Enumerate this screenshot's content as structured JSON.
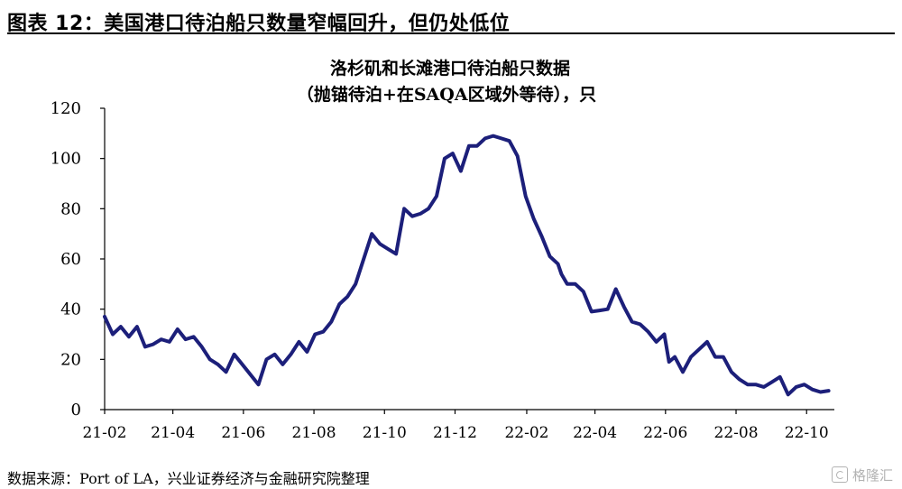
{
  "header": {
    "title": "图表 12：美国港口待泊船只数量窄幅回升，但仍处低位"
  },
  "footer": {
    "source": "数据来源：Port of LA，兴业证券经济与金融研究院整理",
    "watermark": "格隆汇"
  },
  "colors": {
    "line": "#1c1f7a",
    "axis": "#000000",
    "text": "#000000"
  },
  "chart_data": {
    "type": "line",
    "title": "洛杉矶和长滩港口待泊船只数据",
    "subtitle": "（抛锚待泊+在SAQA区域外等待），只",
    "xlabel": "",
    "ylabel": "",
    "grid": false,
    "legend": "none",
    "ylim": [
      0,
      120
    ],
    "yticks": [
      0,
      20,
      40,
      60,
      80,
      100,
      120
    ],
    "xlim": [
      "2021-02-01",
      "2022-10-25"
    ],
    "xticks": [
      {
        "date": "2021-02-01",
        "label": "21-02"
      },
      {
        "date": "2021-04-01",
        "label": "21-04"
      },
      {
        "date": "2021-06-01",
        "label": "21-06"
      },
      {
        "date": "2021-08-01",
        "label": "21-08"
      },
      {
        "date": "2021-10-01",
        "label": "21-10"
      },
      {
        "date": "2021-12-01",
        "label": "21-12"
      },
      {
        "date": "2022-02-01",
        "label": "22-02"
      },
      {
        "date": "2022-04-01",
        "label": "22-04"
      },
      {
        "date": "2022-06-01",
        "label": "22-06"
      },
      {
        "date": "2022-08-01",
        "label": "22-08"
      },
      {
        "date": "2022-10-01",
        "label": "22-10"
      }
    ],
    "series": [
      {
        "points": [
          [
            "2021-02-01",
            37
          ],
          [
            "2021-02-08",
            30
          ],
          [
            "2021-02-15",
            33
          ],
          [
            "2021-02-22",
            29
          ],
          [
            "2021-03-01",
            33
          ],
          [
            "2021-03-08",
            25
          ],
          [
            "2021-03-15",
            26
          ],
          [
            "2021-03-22",
            28
          ],
          [
            "2021-03-29",
            27
          ],
          [
            "2021-04-05",
            32
          ],
          [
            "2021-04-12",
            28
          ],
          [
            "2021-04-19",
            29
          ],
          [
            "2021-04-26",
            25
          ],
          [
            "2021-05-03",
            20
          ],
          [
            "2021-05-10",
            18
          ],
          [
            "2021-05-17",
            15
          ],
          [
            "2021-05-24",
            22
          ],
          [
            "2021-05-31",
            18
          ],
          [
            "2021-06-07",
            14
          ],
          [
            "2021-06-14",
            10
          ],
          [
            "2021-06-21",
            20
          ],
          [
            "2021-06-28",
            22
          ],
          [
            "2021-07-05",
            18
          ],
          [
            "2021-07-12",
            22
          ],
          [
            "2021-07-19",
            27
          ],
          [
            "2021-07-26",
            23
          ],
          [
            "2021-08-02",
            30
          ],
          [
            "2021-08-09",
            31
          ],
          [
            "2021-08-16",
            35
          ],
          [
            "2021-08-23",
            42
          ],
          [
            "2021-08-30",
            45
          ],
          [
            "2021-09-06",
            50
          ],
          [
            "2021-09-13",
            60
          ],
          [
            "2021-09-20",
            70
          ],
          [
            "2021-09-27",
            66
          ],
          [
            "2021-10-04",
            64
          ],
          [
            "2021-10-11",
            62
          ],
          [
            "2021-10-18",
            80
          ],
          [
            "2021-10-25",
            77
          ],
          [
            "2021-11-01",
            78
          ],
          [
            "2021-11-08",
            80
          ],
          [
            "2021-11-15",
            85
          ],
          [
            "2021-11-22",
            100
          ],
          [
            "2021-11-29",
            102
          ],
          [
            "2021-12-06",
            95
          ],
          [
            "2021-12-13",
            105
          ],
          [
            "2021-12-20",
            105
          ],
          [
            "2021-12-27",
            108
          ],
          [
            "2022-01-03",
            109
          ],
          [
            "2022-01-10",
            108
          ],
          [
            "2022-01-17",
            107
          ],
          [
            "2022-01-24",
            101
          ],
          [
            "2022-01-31",
            85
          ],
          [
            "2022-02-07",
            76
          ],
          [
            "2022-02-14",
            69
          ],
          [
            "2022-02-21",
            61
          ],
          [
            "2022-02-28",
            58
          ],
          [
            "2022-03-03",
            54
          ],
          [
            "2022-03-08",
            50
          ],
          [
            "2022-03-15",
            50
          ],
          [
            "2022-03-22",
            47
          ],
          [
            "2022-03-29",
            39
          ],
          [
            "2022-04-05",
            39.5
          ],
          [
            "2022-04-12",
            40
          ],
          [
            "2022-04-19",
            48
          ],
          [
            "2022-04-26",
            41
          ],
          [
            "2022-05-03",
            35
          ],
          [
            "2022-05-10",
            34
          ],
          [
            "2022-05-17",
            31
          ],
          [
            "2022-05-24",
            27
          ],
          [
            "2022-05-31",
            30
          ],
          [
            "2022-06-04",
            19
          ],
          [
            "2022-06-09",
            21
          ],
          [
            "2022-06-16",
            15
          ],
          [
            "2022-06-23",
            21
          ],
          [
            "2022-06-30",
            24
          ],
          [
            "2022-07-07",
            27
          ],
          [
            "2022-07-14",
            21
          ],
          [
            "2022-07-21",
            21
          ],
          [
            "2022-07-28",
            15
          ],
          [
            "2022-08-04",
            12
          ],
          [
            "2022-08-11",
            10
          ],
          [
            "2022-08-18",
            10
          ],
          [
            "2022-08-25",
            9
          ],
          [
            "2022-09-01",
            11
          ],
          [
            "2022-09-08",
            13
          ],
          [
            "2022-09-15",
            6
          ],
          [
            "2022-09-22",
            9
          ],
          [
            "2022-09-29",
            10
          ],
          [
            "2022-10-06",
            8
          ],
          [
            "2022-10-13",
            7
          ],
          [
            "2022-10-20",
            7.5
          ]
        ]
      }
    ]
  }
}
